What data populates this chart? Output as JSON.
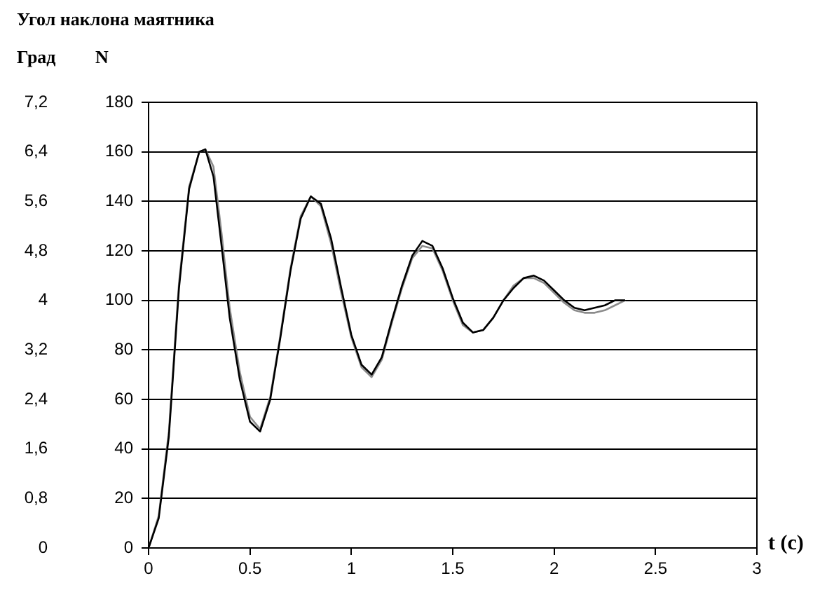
{
  "chart_data": {
    "type": "line",
    "title": "Угол наклона маятника",
    "xlabel": "t (c)",
    "ylabel": "N",
    "y2label": "Град",
    "x": [
      0,
      0.05,
      0.1,
      0.15,
      0.2,
      0.25,
      0.28,
      0.32,
      0.36,
      0.4,
      0.45,
      0.5,
      0.55,
      0.6,
      0.65,
      0.7,
      0.75,
      0.8,
      0.85,
      0.9,
      0.95,
      1.0,
      1.05,
      1.1,
      1.15,
      1.2,
      1.25,
      1.3,
      1.35,
      1.4,
      1.45,
      1.5,
      1.55,
      1.6,
      1.65,
      1.7,
      1.75,
      1.8,
      1.85,
      1.9,
      1.95,
      2.0,
      2.05,
      2.1,
      2.15,
      2.2,
      2.25,
      2.3,
      2.35
    ],
    "series": [
      {
        "color": "#000000",
        "values": [
          0,
          12,
          45,
          105,
          145,
          160,
          161,
          150,
          122,
          93,
          68,
          51,
          47,
          60,
          85,
          112,
          133,
          142,
          139,
          125,
          105,
          86,
          74,
          70,
          77,
          92,
          106,
          118,
          124,
          122,
          113,
          101,
          91,
          87,
          88,
          93,
          100,
          105,
          109,
          110,
          108,
          104,
          100,
          97,
          96,
          97,
          98,
          100,
          100
        ]
      },
      {
        "color": "#8c8c8c",
        "values": [
          0,
          13,
          47,
          107,
          146,
          160,
          161,
          154,
          127,
          97,
          71,
          53,
          48,
          61,
          86,
          113,
          134,
          142,
          138,
          123,
          103,
          85,
          73,
          69,
          76,
          91,
          105,
          117,
          122,
          121,
          112,
          100,
          90,
          87,
          88,
          93,
          100,
          106,
          109,
          109,
          107,
          103,
          99,
          96,
          95,
          95,
          96,
          98,
          100
        ]
      }
    ],
    "xlim": [
      0,
      3
    ],
    "xticks": [
      0,
      0.5,
      1,
      1.5,
      2,
      2.5,
      3
    ],
    "ylim": [
      0,
      180
    ],
    "yticks": [
      0,
      20,
      40,
      60,
      80,
      100,
      120,
      140,
      160,
      180
    ],
    "y2lim": [
      0,
      7.2
    ],
    "y2ticks": [
      {
        "value": 0,
        "label": "0"
      },
      {
        "value": 0.8,
        "label": "0,8"
      },
      {
        "value": 1.6,
        "label": "1,6"
      },
      {
        "value": 2.4,
        "label": "2,4"
      },
      {
        "value": 3.2,
        "label": "3,2"
      },
      {
        "value": 4,
        "label": "4"
      },
      {
        "value": 4.8,
        "label": "4,8"
      },
      {
        "value": 5.6,
        "label": "5,6"
      },
      {
        "value": 6.4,
        "label": "6,4"
      },
      {
        "value": 7.2,
        "label": "7,2"
      }
    ],
    "grid": "y",
    "marker": "none",
    "line_style": "solid"
  }
}
